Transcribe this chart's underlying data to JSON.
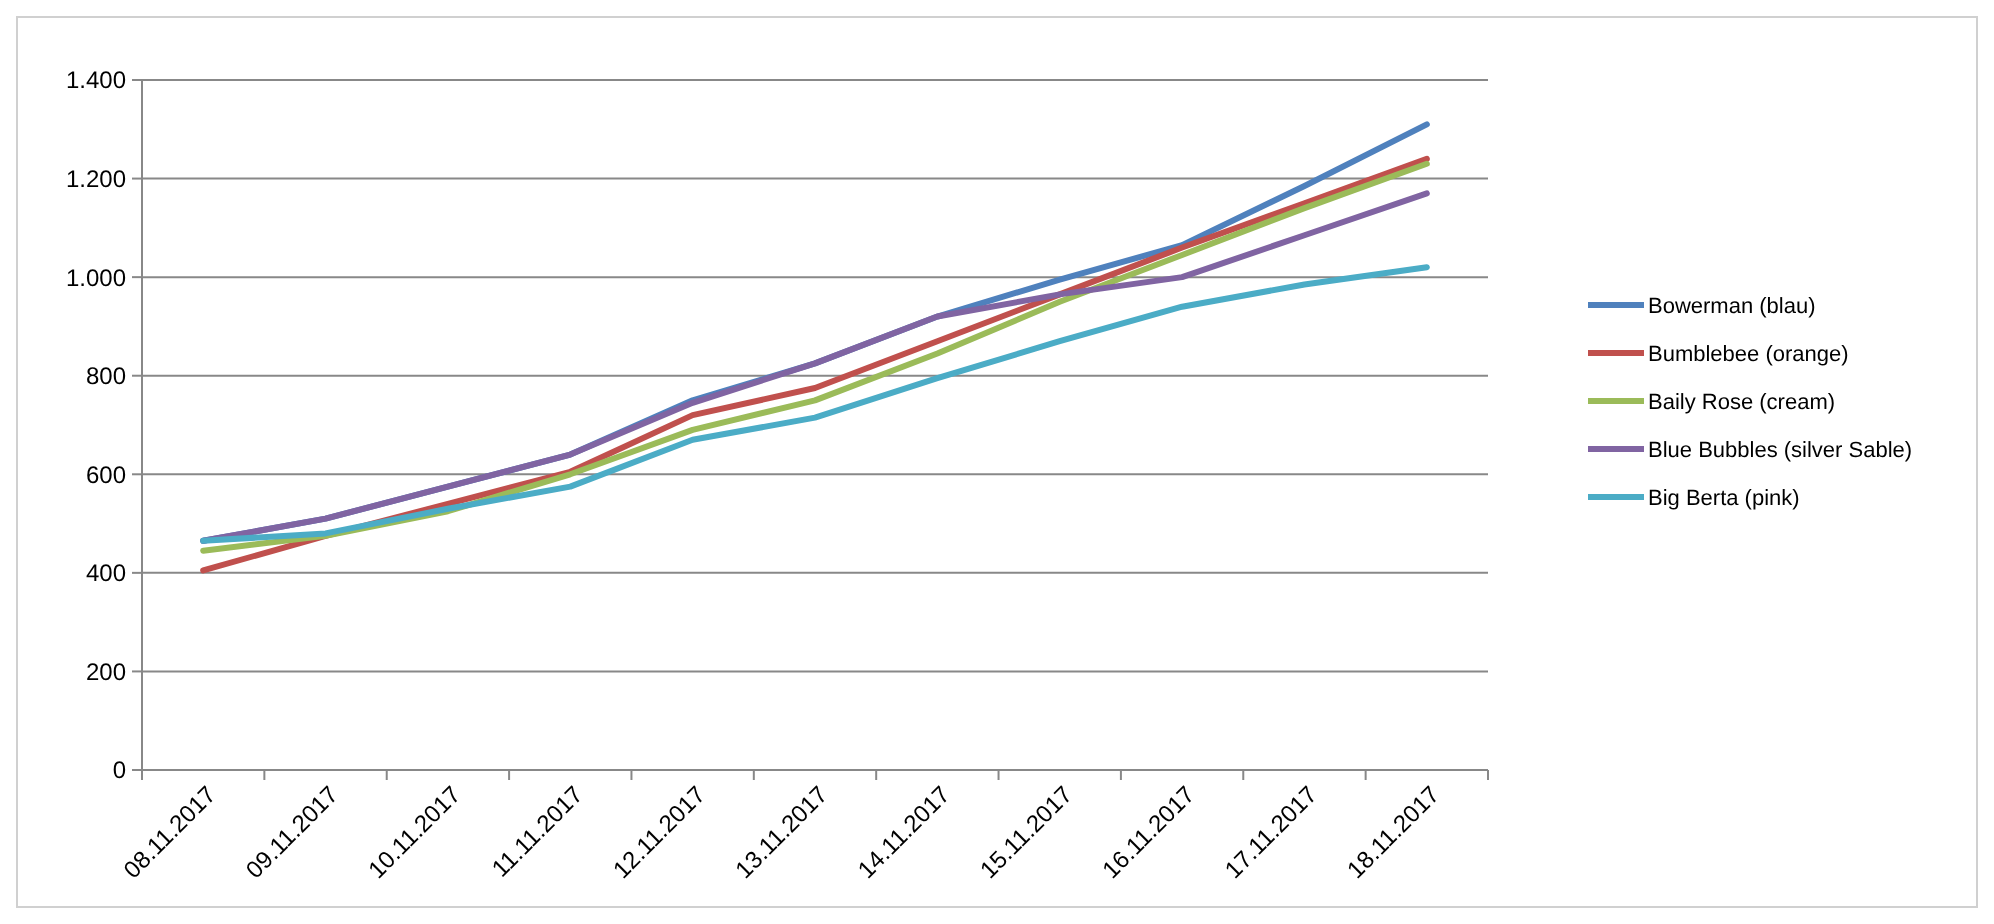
{
  "chart_data": {
    "type": "line",
    "categories": [
      "08.11.2017",
      "09.11.2017",
      "10.11.2017",
      "11.11.2017",
      "12.11.2017",
      "13.11.2017",
      "14.11.2017",
      "15.11.2017",
      "16.11.2017",
      "17.11.2017",
      "18.11.2017"
    ],
    "series": [
      {
        "name": "Bowerman (blau)",
        "color": "#4f81bd",
        "values": [
          465,
          510,
          575,
          640,
          750,
          825,
          920,
          995,
          1065,
          1185,
          1310
        ]
      },
      {
        "name": "Bumblebee (orange)",
        "color": "#c0504d",
        "values": [
          405,
          475,
          540,
          605,
          720,
          775,
          870,
          965,
          1060,
          1150,
          1240
        ]
      },
      {
        "name": "Baily Rose (cream)",
        "color": "#9bbb59",
        "values": [
          445,
          475,
          525,
          600,
          690,
          750,
          845,
          950,
          1045,
          1140,
          1230
        ]
      },
      {
        "name": "Blue Bubbles (silver Sable)",
        "color": "#8064a2",
        "values": [
          465,
          510,
          575,
          640,
          745,
          825,
          920,
          965,
          1000,
          1085,
          1170
        ]
      },
      {
        "name": "Big Berta (pink)",
        "color": "#4bacc6",
        "values": [
          465,
          480,
          530,
          575,
          670,
          715,
          795,
          870,
          940,
          985,
          1020
        ]
      }
    ],
    "ylim": [
      0,
      1400
    ],
    "yticks": [
      0,
      {
        "value": 200,
        "label": "200"
      },
      {
        "value": 400,
        "label": "400"
      },
      {
        "value": 600,
        "label": "600"
      },
      {
        "value": 800,
        "label": "800"
      },
      {
        "value": 1000,
        "label": "1.000"
      },
      {
        "value": 1200,
        "label": "1.200"
      },
      {
        "value": 1400,
        "label": "1.400"
      }
    ],
    "grid": "y",
    "legend": "right",
    "marker": "none",
    "line_style": "solid"
  }
}
